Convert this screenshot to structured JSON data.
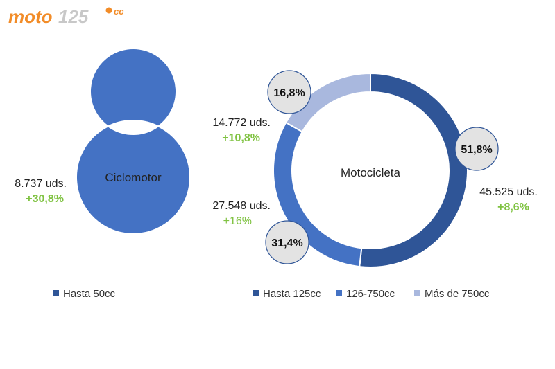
{
  "logo": {
    "text_main": "moto",
    "text_num": "125",
    "text_cc": "cc"
  },
  "colors": {
    "hasta_125": "#2f5597",
    "c126_750": "#4472c4",
    "mas_750": "#a9b8de",
    "hasta_50": "#4472c4",
    "callout_bg": "#e3e3e3",
    "growth": "#7fc241",
    "text": "#222222",
    "logo_orange": "#f28c28",
    "logo_gray": "#c8c8c8"
  },
  "chart_data": [
    {
      "type": "pie",
      "variant": "donut",
      "center_label": "Ciclomotor",
      "slices": [
        {
          "name": "Hasta 50cc",
          "share": 1.0,
          "units": "8.737 uds.",
          "growth": "+30,8%"
        }
      ],
      "legend": [
        "Hasta 50cc"
      ],
      "legend_position": "bottom"
    },
    {
      "type": "pie",
      "variant": "donut",
      "center_label": "Motocicleta",
      "slices": [
        {
          "name": "Hasta 125cc",
          "share": 0.518,
          "pct_label": "51,8%",
          "units": "45.525 uds.",
          "growth": "+8,6%"
        },
        {
          "name": "126-750cc",
          "share": 0.314,
          "pct_label": "31,4%",
          "units": "27.548 uds.",
          "growth": "+16%"
        },
        {
          "name": "Más de 750cc",
          "share": 0.168,
          "pct_label": "16,8%",
          "units": "14.772 uds.",
          "growth": "+10,8%"
        }
      ],
      "legend": [
        "Hasta 125cc",
        "126-750cc",
        "Más de 750cc"
      ],
      "legend_position": "bottom"
    }
  ]
}
